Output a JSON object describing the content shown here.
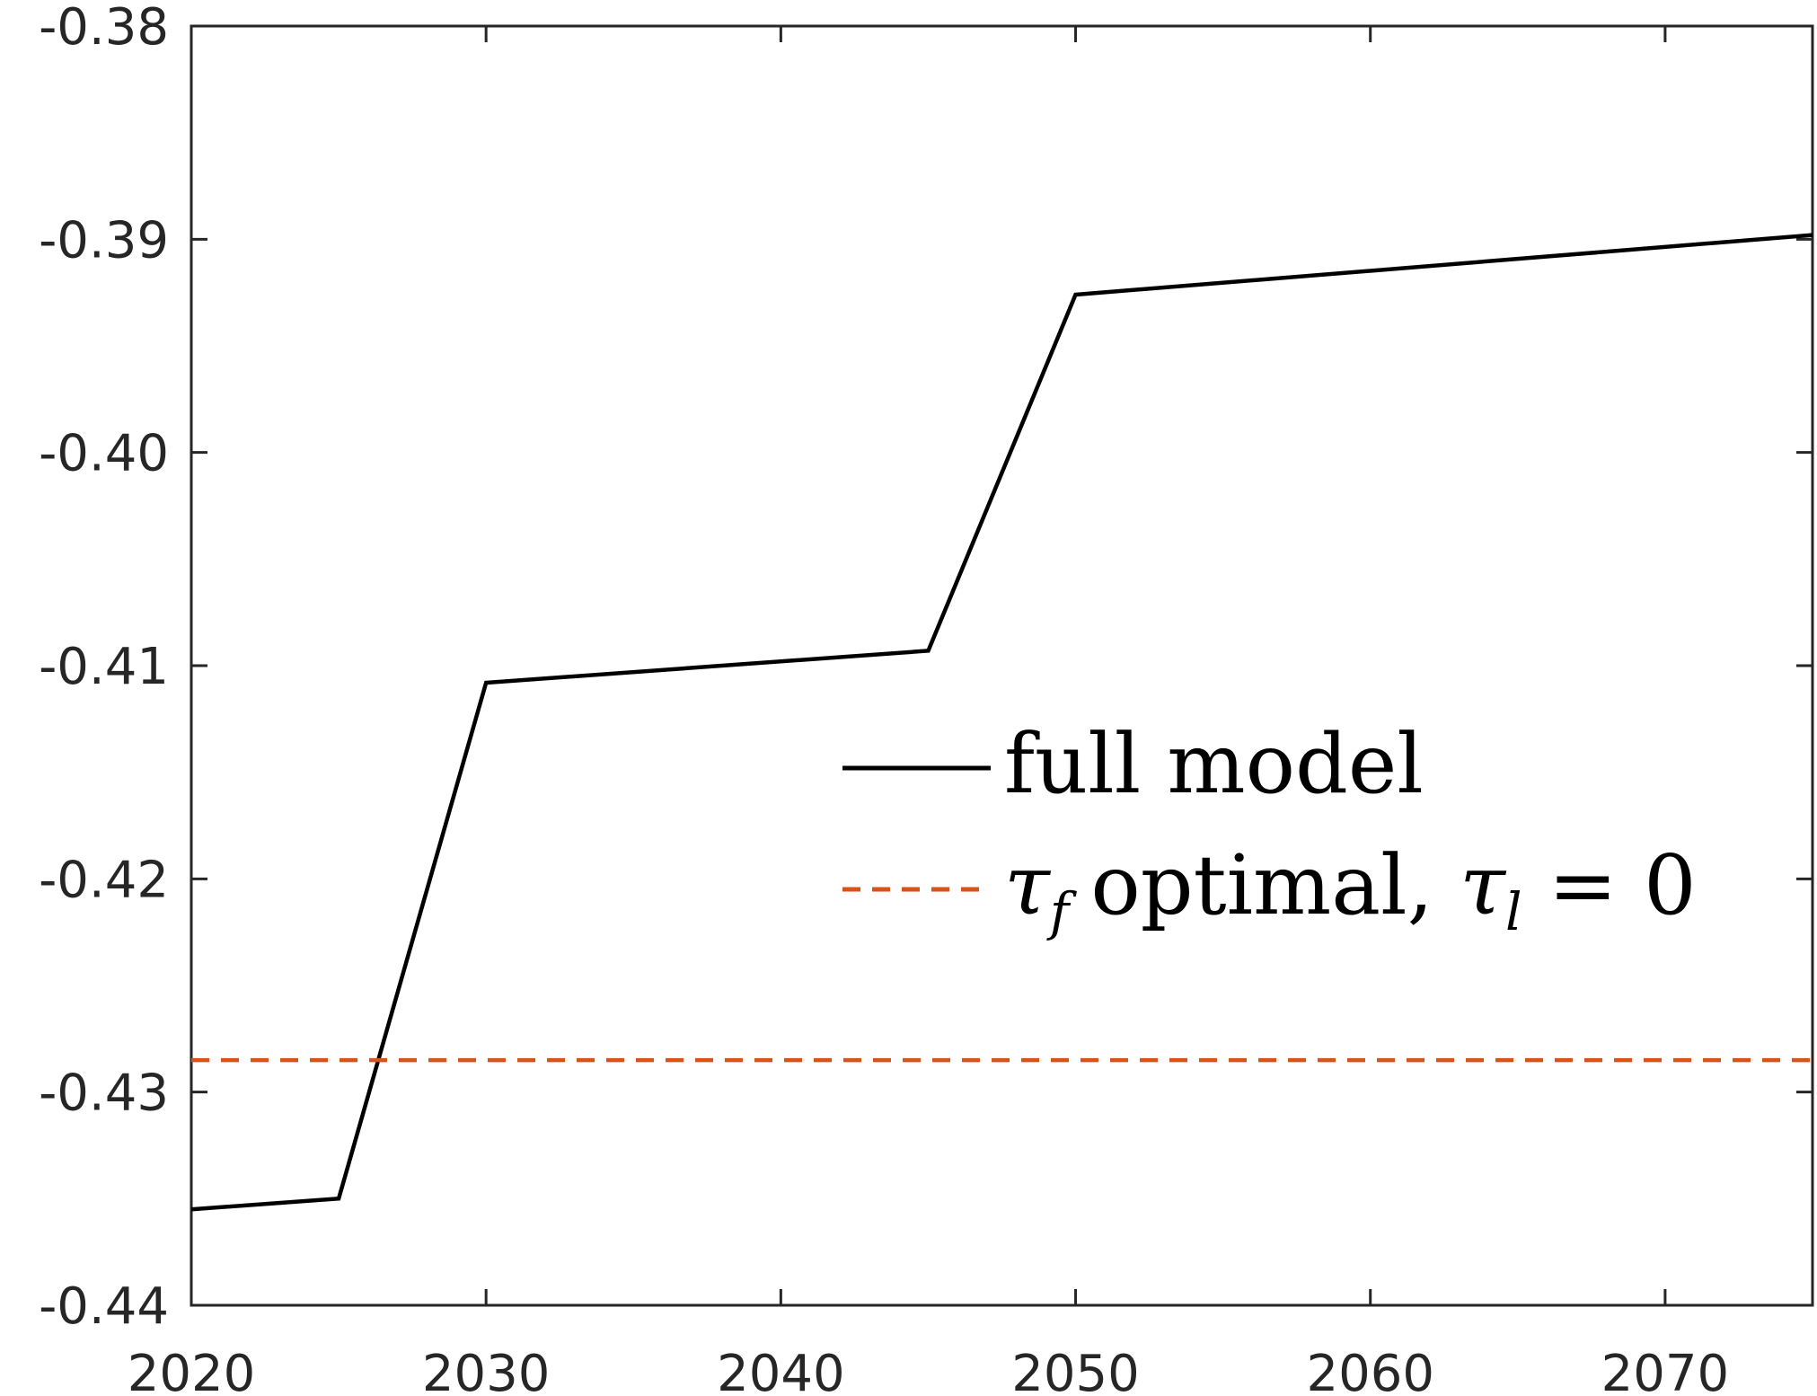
{
  "chart_data": {
    "type": "line",
    "title": "",
    "xlabel": "",
    "ylabel": "",
    "xlim": [
      2020,
      2075
    ],
    "ylim": [
      -0.44,
      -0.38
    ],
    "xticks": [
      2020,
      2030,
      2040,
      2050,
      2060,
      2070
    ],
    "xtick_labels": [
      "2020",
      "2030",
      "2040",
      "2050",
      "2060",
      "2070"
    ],
    "yticks": [
      -0.44,
      -0.43,
      -0.42,
      -0.41,
      -0.4,
      -0.39,
      -0.38
    ],
    "ytick_labels": [
      "-0.44",
      "-0.43",
      "-0.42",
      "-0.41",
      "-0.40",
      "-0.39",
      "-0.38"
    ],
    "grid": false,
    "legend_position": "center-right",
    "series": [
      {
        "name": "full model",
        "color": "#000000",
        "style": "solid",
        "x": [
          2020,
          2025,
          2030,
          2045,
          2050,
          2075
        ],
        "y": [
          -0.4355,
          -0.435,
          -0.4108,
          -0.4093,
          -0.3926,
          -0.3898
        ]
      },
      {
        "name": "optimal, ",
        "legend_math_prefix": "τ",
        "legend_math_prefix_sub": "f",
        "legend_math_suffix": "τ",
        "legend_math_suffix_sub": "l",
        "legend_math_suffix_rest": " = 0",
        "color": "#D95319",
        "style": "dashed",
        "x": [
          2020,
          2075
        ],
        "y": [
          -0.4285,
          -0.4285
        ]
      }
    ]
  }
}
